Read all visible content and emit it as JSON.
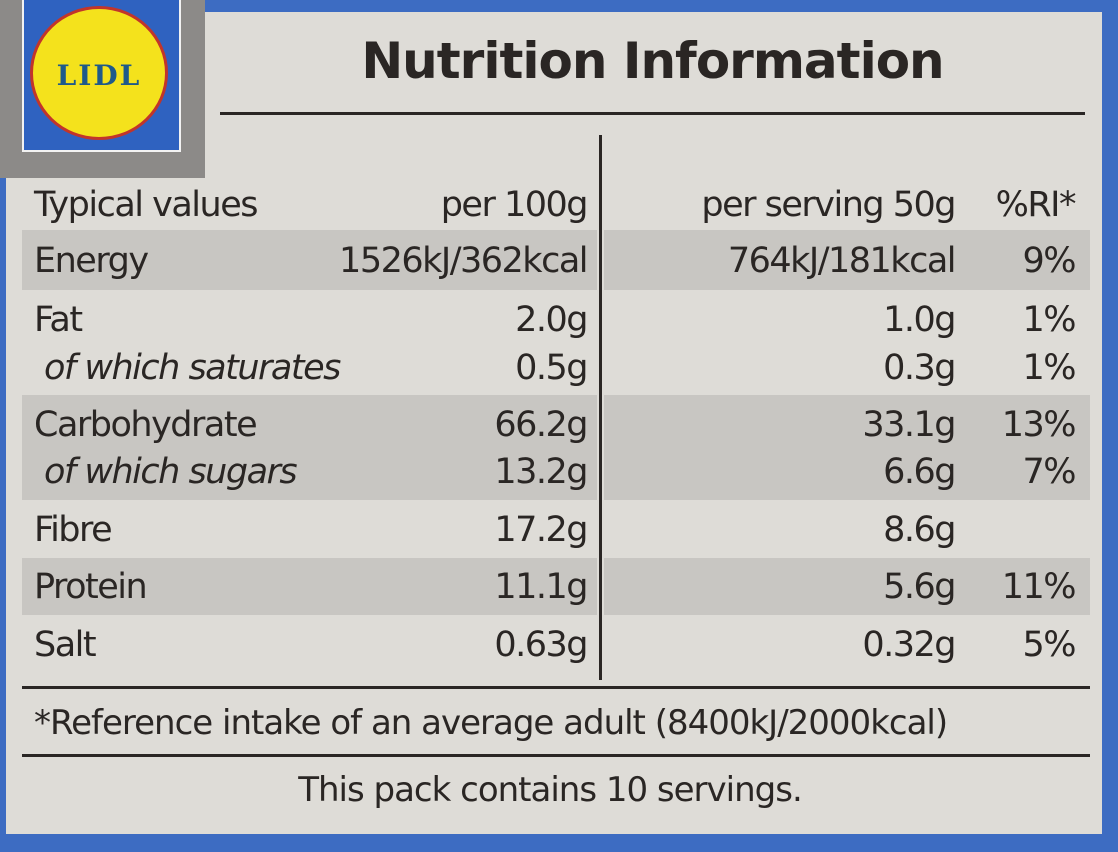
{
  "logo": {
    "text": "LIDL"
  },
  "title": "Nutrition Information",
  "header": {
    "label": "Typical values",
    "per100": "per 100g",
    "perServing": "per serving 50g",
    "ri": "%RI*"
  },
  "rows": [
    {
      "label": "Energy",
      "per100": "1526kJ/362kcal",
      "perServing": "764kJ/181kcal",
      "ri": "9%"
    },
    {
      "label": "Fat",
      "per100": "2.0g",
      "perServing": "1.0g",
      "ri": "1%"
    },
    {
      "label": "of which saturates",
      "per100": "0.5g",
      "perServing": "0.3g",
      "ri": "1%"
    },
    {
      "label": "Carbohydrate",
      "per100": "66.2g",
      "perServing": "33.1g",
      "ri": "13%"
    },
    {
      "label": "of which sugars",
      "per100": "13.2g",
      "perServing": "6.6g",
      "ri": "7%"
    },
    {
      "label": "Fibre",
      "per100": "17.2g",
      "perServing": "8.6g",
      "ri": ""
    },
    {
      "label": "Protein",
      "per100": "11.1g",
      "perServing": "5.6g",
      "ri": "11%"
    },
    {
      "label": "Salt",
      "per100": "0.63g",
      "perServing": "0.32g",
      "ri": "5%"
    }
  ],
  "footnote": "*Reference intake of an average adult (8400kJ/2000kcal)",
  "servings_note": "This pack contains 10 servings."
}
